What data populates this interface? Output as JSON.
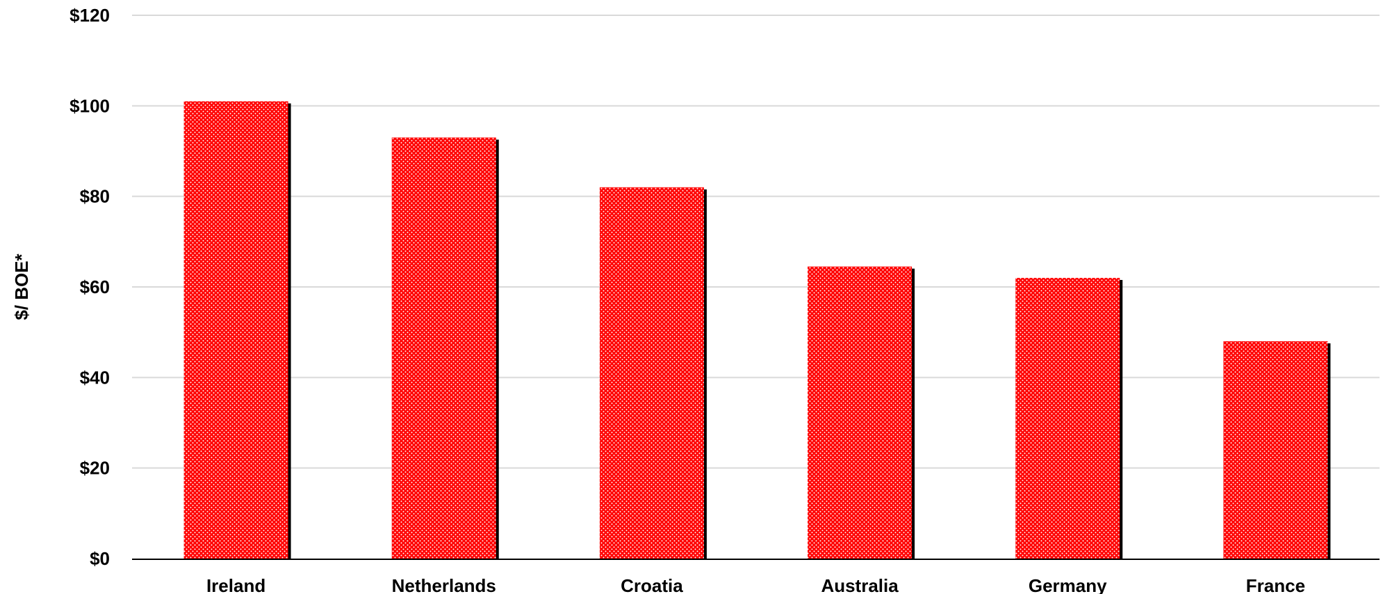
{
  "chart_data": {
    "type": "bar",
    "title": "",
    "xlabel": "",
    "ylabel": "$/ BOE*",
    "categories": [
      "Ireland",
      "Netherlands",
      "Croatia",
      "Australia",
      "Germany",
      "France"
    ],
    "values": [
      101,
      93,
      82,
      64.5,
      62,
      48
    ],
    "ylim": [
      0,
      120
    ],
    "yticks": [
      0,
      20,
      40,
      60,
      80,
      100,
      120
    ],
    "ytick_labels": [
      "$0",
      "$20",
      "$40",
      "$60",
      "$80",
      "$100",
      "$120"
    ],
    "grid": true,
    "legend": "none",
    "bar_color": "#ff0000",
    "bar_pattern": "white dots",
    "shadow_color": "#000000",
    "grid_color": "#d9d9d9",
    "axis_color": "#000000"
  }
}
